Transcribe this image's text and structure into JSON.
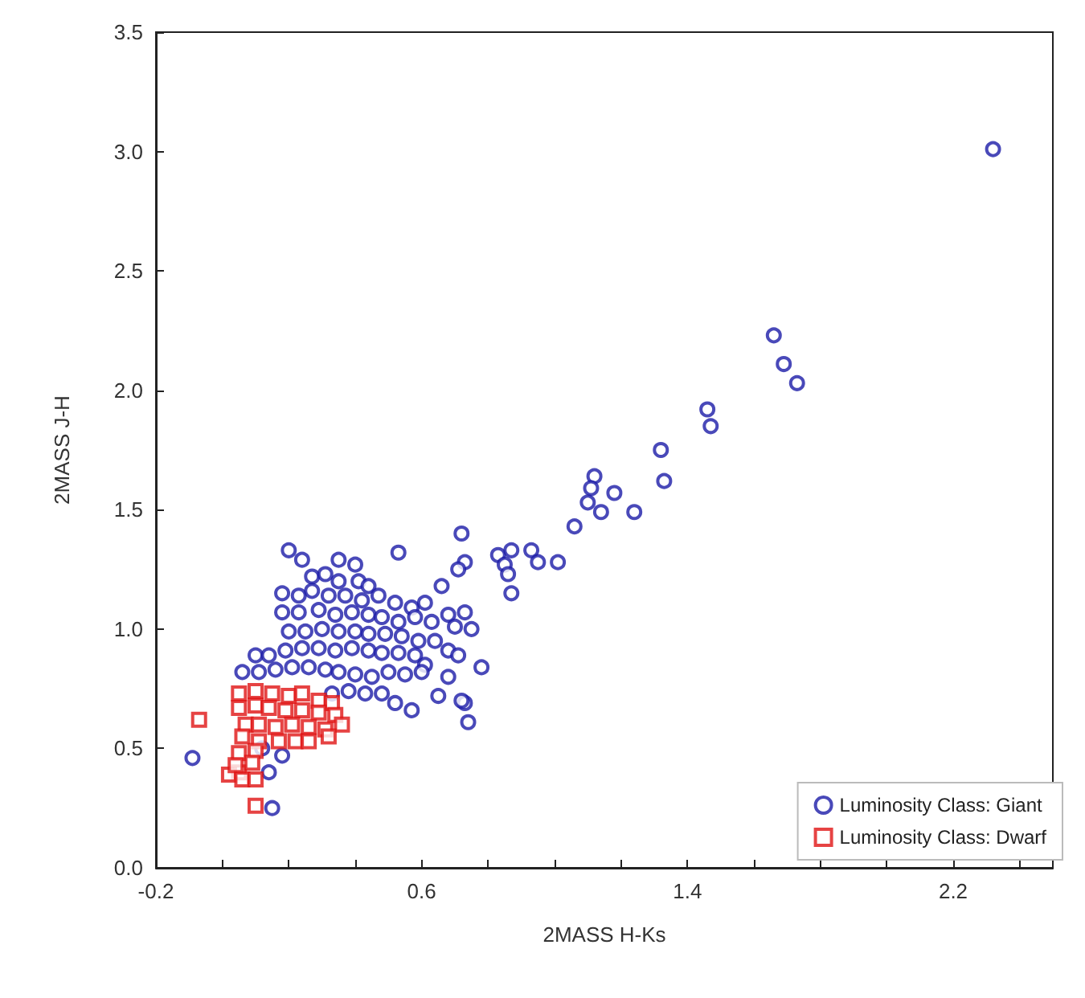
{
  "chart_data": {
    "type": "scatter",
    "xlabel": "2MASS H-Ks",
    "ylabel": "2MASS J-H",
    "xlim": [
      -0.2,
      2.5
    ],
    "ylim": [
      0,
      3.5
    ],
    "xticks": [
      {
        "value": -0.2,
        "label": "-0.2"
      },
      {
        "value": 0,
        "label": null
      },
      {
        "value": 0.2,
        "label": null
      },
      {
        "value": 0.4,
        "label": null
      },
      {
        "value": 0.6,
        "label": "0.6"
      },
      {
        "value": 0.8,
        "label": null
      },
      {
        "value": 1,
        "label": null
      },
      {
        "value": 1.2,
        "label": null
      },
      {
        "value": 1.4,
        "label": "1.4"
      },
      {
        "value": 1.6,
        "label": null
      },
      {
        "value": 1.8,
        "label": null
      },
      {
        "value": 2,
        "label": null
      },
      {
        "value": 2.2,
        "label": "2.2"
      },
      {
        "value": 2.4,
        "label": null
      }
    ],
    "yticks": [
      {
        "value": 0,
        "label": "0.0"
      },
      {
        "value": 0.5,
        "label": "0.5"
      },
      {
        "value": 1,
        "label": "1.0"
      },
      {
        "value": 1.5,
        "label": "1.5"
      },
      {
        "value": 2,
        "label": "2.0"
      },
      {
        "value": 2.5,
        "label": "2.5"
      },
      {
        "value": 3,
        "label": "3.0"
      },
      {
        "value": 3.5,
        "label": "3.5"
      }
    ],
    "grid": false,
    "legend": "bottom right",
    "series": [
      {
        "name": "Luminosity Class: Giant",
        "color": "#1c1ca8",
        "marker": "circle",
        "x": [
          0.72,
          0.2,
          0.53,
          0.24,
          0.35,
          0.4,
          0.27,
          0.31,
          0.35,
          0.41,
          0.44,
          0.18,
          0.23,
          0.27,
          0.32,
          0.37,
          0.42,
          0.47,
          0.52,
          0.57,
          0.66,
          0.61,
          0.68,
          0.73,
          0.18,
          0.23,
          0.29,
          0.34,
          0.39,
          0.44,
          0.48,
          0.53,
          0.58,
          0.63,
          0.7,
          0.75,
          0.2,
          0.25,
          0.3,
          0.35,
          0.4,
          0.44,
          0.49,
          0.54,
          0.59,
          0.64,
          0.68,
          0.71,
          0.78,
          0.1,
          0.14,
          0.19,
          0.24,
          0.29,
          0.34,
          0.39,
          0.44,
          0.48,
          0.53,
          0.58,
          0.61,
          0.06,
          0.11,
          0.16,
          0.21,
          0.26,
          0.31,
          0.35,
          0.4,
          0.45,
          0.5,
          0.55,
          0.6,
          0.68,
          0.33,
          0.38,
          0.43,
          0.48,
          0.52,
          0.57,
          0.65,
          0.73,
          0.74,
          0.72,
          -0.09,
          0.14,
          0.18,
          0.15,
          0.12,
          0.73,
          0.71,
          0.83,
          0.87,
          0.85,
          0.86,
          0.93,
          0.95,
          1.01,
          0.87,
          1.32,
          1.33,
          1.12,
          1.11,
          1.18,
          1.1,
          1.14,
          1.24,
          1.06,
          1.47,
          1.46,
          1.66,
          1.69,
          1.73,
          2.32
        ],
        "values": [
          1.4,
          1.33,
          1.32,
          1.29,
          1.29,
          1.27,
          1.22,
          1.23,
          1.2,
          1.2,
          1.18,
          1.15,
          1.14,
          1.16,
          1.14,
          1.14,
          1.12,
          1.14,
          1.11,
          1.09,
          1.18,
          1.11,
          1.06,
          1.07,
          1.07,
          1.07,
          1.08,
          1.06,
          1.07,
          1.06,
          1.05,
          1.03,
          1.05,
          1.03,
          1.01,
          1,
          0.99,
          0.99,
          1,
          0.99,
          0.99,
          0.98,
          0.98,
          0.97,
          0.95,
          0.95,
          0.91,
          0.89,
          0.84,
          0.89,
          0.89,
          0.91,
          0.92,
          0.92,
          0.91,
          0.92,
          0.91,
          0.9,
          0.9,
          0.89,
          0.85,
          0.82,
          0.82,
          0.83,
          0.84,
          0.84,
          0.83,
          0.82,
          0.81,
          0.8,
          0.82,
          0.81,
          0.82,
          0.8,
          0.73,
          0.74,
          0.73,
          0.73,
          0.69,
          0.66,
          0.72,
          0.69,
          0.61,
          0.7,
          0.46,
          0.4,
          0.47,
          0.25,
          0.5,
          1.28,
          1.25,
          1.31,
          1.33,
          1.27,
          1.23,
          1.33,
          1.28,
          1.28,
          1.15,
          1.75,
          1.62,
          1.64,
          1.59,
          1.57,
          1.53,
          1.49,
          1.49,
          1.43,
          1.85,
          1.92,
          2.23,
          2.11,
          2.03,
          3.01
        ]
      },
      {
        "name": "Luminosity Class: Dwarf",
        "color": "#e01414",
        "marker": "square",
        "x": [
          -0.07,
          0.05,
          0.1,
          0.15,
          0.2,
          0.24,
          0.29,
          0.33,
          0.05,
          0.1,
          0.14,
          0.19,
          0.24,
          0.29,
          0.34,
          0.36,
          0.07,
          0.11,
          0.16,
          0.21,
          0.26,
          0.31,
          0.06,
          0.11,
          0.17,
          0.22,
          0.26,
          0.32,
          0.05,
          0.1,
          0.05,
          0.02,
          0.06,
          0.1,
          0.1,
          0.04,
          0.09
        ],
        "values": [
          0.62,
          0.73,
          0.74,
          0.73,
          0.72,
          0.73,
          0.7,
          0.69,
          0.67,
          0.68,
          0.67,
          0.66,
          0.66,
          0.65,
          0.64,
          0.6,
          0.6,
          0.6,
          0.59,
          0.6,
          0.59,
          0.58,
          0.55,
          0.53,
          0.53,
          0.53,
          0.53,
          0.55,
          0.48,
          0.49,
          0.4,
          0.39,
          0.37,
          0.37,
          0.26,
          0.43,
          0.44
        ]
      }
    ]
  }
}
